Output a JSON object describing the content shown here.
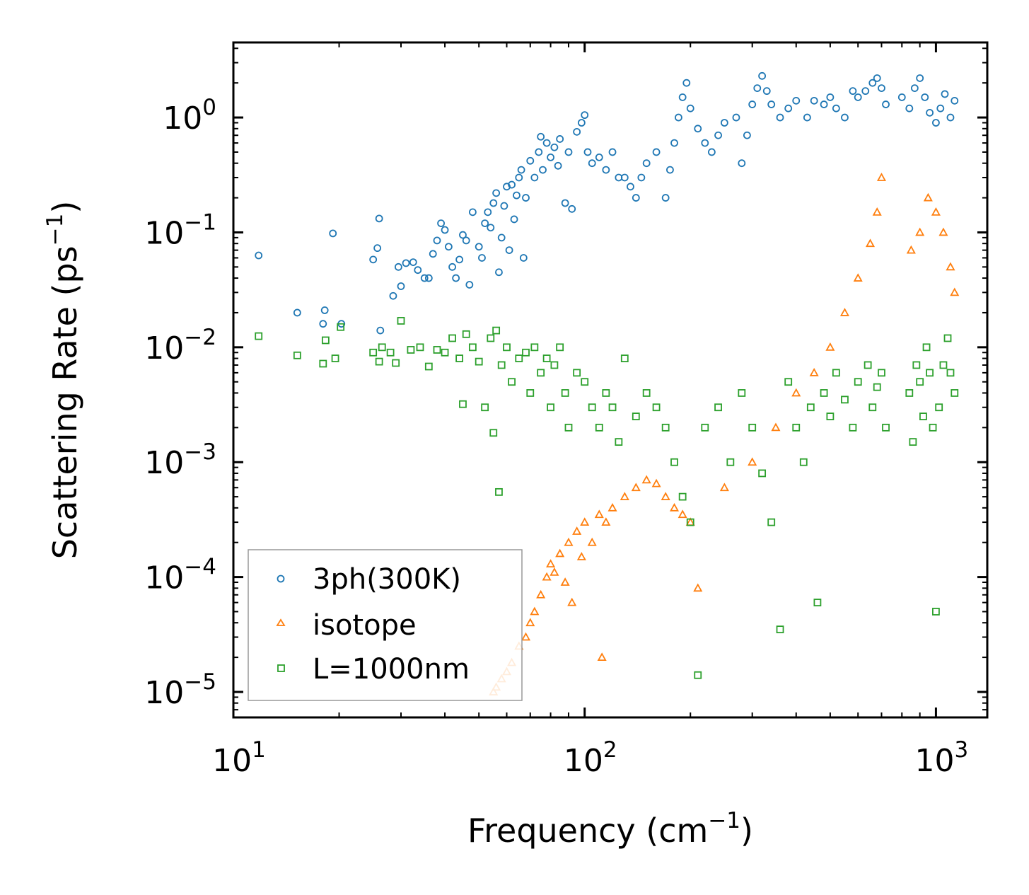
{
  "chart_data": {
    "type": "scatter",
    "title": "",
    "xlabel": "Frequency (cm",
    "xlabel_sup": "−1",
    "xlabel_suffix": ")",
    "ylabel": "Scattering Rate (ps",
    "ylabel_sup": "−1",
    "ylabel_suffix": ")",
    "xscale": "log",
    "yscale": "log",
    "xlim": [
      10,
      1400
    ],
    "ylim": [
      6e-06,
      4.5
    ],
    "x_ticks": [
      {
        "value": 10,
        "base": "10",
        "exp": "1"
      },
      {
        "value": 100,
        "base": "10",
        "exp": "2"
      },
      {
        "value": 1000,
        "base": "10",
        "exp": "3"
      }
    ],
    "y_ticks": [
      {
        "value": 1,
        "base": "10",
        "exp": "0"
      },
      {
        "value": 0.1,
        "base": "10",
        "exp": "−1"
      },
      {
        "value": 0.01,
        "base": "10",
        "exp": "−2"
      },
      {
        "value": 0.001,
        "base": "10",
        "exp": "−3"
      },
      {
        "value": 0.0001,
        "base": "10",
        "exp": "−4"
      },
      {
        "value": 1e-05,
        "base": "10",
        "exp": "−5"
      }
    ],
    "legend": {
      "position": "lower-left"
    },
    "series": [
      {
        "name": "3ph(300K)",
        "marker": "circle",
        "color": "#1f77b4",
        "points": [
          [
            11.8,
            0.063
          ],
          [
            15.2,
            0.02
          ],
          [
            18,
            0.016
          ],
          [
            18.2,
            0.021
          ],
          [
            19.2,
            0.098
          ],
          [
            20.3,
            0.016
          ],
          [
            25,
            0.058
          ],
          [
            25.7,
            0.073
          ],
          [
            26,
            0.132
          ],
          [
            26.2,
            0.014
          ],
          [
            28.5,
            0.028
          ],
          [
            29.5,
            0.05
          ],
          [
            30,
            0.034
          ],
          [
            31,
            0.054
          ],
          [
            32.5,
            0.055
          ],
          [
            33.5,
            0.047
          ],
          [
            35,
            0.04
          ],
          [
            36,
            0.04
          ],
          [
            37,
            0.065
          ],
          [
            38,
            0.085
          ],
          [
            39,
            0.12
          ],
          [
            40,
            0.105
          ],
          [
            41,
            0.075
          ],
          [
            42,
            0.05
          ],
          [
            43,
            0.04
          ],
          [
            44,
            0.058
          ],
          [
            45,
            0.095
          ],
          [
            46,
            0.085
          ],
          [
            47,
            0.035
          ],
          [
            48,
            0.15
          ],
          [
            50,
            0.075
          ],
          [
            51,
            0.06
          ],
          [
            52,
            0.12
          ],
          [
            53,
            0.15
          ],
          [
            54,
            0.11
          ],
          [
            55,
            0.18
          ],
          [
            56,
            0.22
          ],
          [
            57,
            0.045
          ],
          [
            58,
            0.09
          ],
          [
            59,
            0.17
          ],
          [
            60,
            0.25
          ],
          [
            61,
            0.07
          ],
          [
            62,
            0.26
          ],
          [
            63,
            0.13
          ],
          [
            64,
            0.21
          ],
          [
            65,
            0.3
          ],
          [
            66,
            0.35
          ],
          [
            67,
            0.06
          ],
          [
            68,
            0.2
          ],
          [
            70,
            0.42
          ],
          [
            72,
            0.3
          ],
          [
            74,
            0.5
          ],
          [
            75,
            0.68
          ],
          [
            76,
            0.35
          ],
          [
            78,
            0.6
          ],
          [
            80,
            0.45
          ],
          [
            82,
            0.55
          ],
          [
            84,
            0.38
          ],
          [
            85,
            0.65
          ],
          [
            88,
            0.18
          ],
          [
            90,
            0.5
          ],
          [
            92,
            0.16
          ],
          [
            95,
            0.75
          ],
          [
            98,
            0.9
          ],
          [
            100,
            1.05
          ],
          [
            102,
            0.5
          ],
          [
            105,
            0.4
          ],
          [
            110,
            0.45
          ],
          [
            115,
            0.35
          ],
          [
            120,
            0.5
          ],
          [
            125,
            0.3
          ],
          [
            130,
            0.3
          ],
          [
            135,
            0.25
          ],
          [
            140,
            0.2
          ],
          [
            145,
            0.3
          ],
          [
            150,
            0.4
          ],
          [
            160,
            0.5
          ],
          [
            170,
            0.2
          ],
          [
            175,
            0.35
          ],
          [
            180,
            0.6
          ],
          [
            185,
            1.0
          ],
          [
            190,
            1.5
          ],
          [
            195,
            2.0
          ],
          [
            200,
            1.2
          ],
          [
            210,
            0.8
          ],
          [
            220,
            0.6
          ],
          [
            230,
            0.5
          ],
          [
            240,
            0.7
          ],
          [
            250,
            0.9
          ],
          [
            270,
            1.0
          ],
          [
            280,
            0.4
          ],
          [
            290,
            0.7
          ],
          [
            300,
            1.3
          ],
          [
            310,
            1.8
          ],
          [
            320,
            2.3
          ],
          [
            330,
            1.7
          ],
          [
            340,
            1.3
          ],
          [
            360,
            1.0
          ],
          [
            380,
            1.2
          ],
          [
            400,
            1.4
          ],
          [
            430,
            1.0
          ],
          [
            450,
            1.4
          ],
          [
            480,
            1.3
          ],
          [
            500,
            1.5
          ],
          [
            520,
            1.2
          ],
          [
            550,
            1.0
          ],
          [
            580,
            1.7
          ],
          [
            600,
            1.5
          ],
          [
            630,
            1.7
          ],
          [
            660,
            2.0
          ],
          [
            680,
            2.2
          ],
          [
            700,
            1.8
          ],
          [
            720,
            1.3
          ],
          [
            800,
            1.5
          ],
          [
            840,
            1.2
          ],
          [
            870,
            1.8
          ],
          [
            900,
            2.2
          ],
          [
            930,
            1.5
          ],
          [
            960,
            1.1
          ],
          [
            1000,
            0.9
          ],
          [
            1030,
            1.2
          ],
          [
            1060,
            1.6
          ],
          [
            1100,
            1.0
          ],
          [
            1130,
            1.4
          ]
        ]
      },
      {
        "name": "isotope",
        "marker": "triangle",
        "color": "#ff7f0e",
        "points": [
          [
            55,
            1e-05
          ],
          [
            56,
            1.1e-05
          ],
          [
            58,
            1.3e-05
          ],
          [
            60,
            1.5e-05
          ],
          [
            62,
            1.8e-05
          ],
          [
            65,
            2.5e-05
          ],
          [
            68,
            3e-05
          ],
          [
            70,
            4e-05
          ],
          [
            72,
            5e-05
          ],
          [
            75,
            7e-05
          ],
          [
            78,
            0.0001
          ],
          [
            80,
            0.00013
          ],
          [
            82,
            0.00011
          ],
          [
            85,
            0.00016
          ],
          [
            88,
            9e-05
          ],
          [
            90,
            0.0002
          ],
          [
            92,
            6e-05
          ],
          [
            95,
            0.00025
          ],
          [
            98,
            0.00015
          ],
          [
            100,
            0.0003
          ],
          [
            105,
            0.0002
          ],
          [
            110,
            0.00035
          ],
          [
            112,
            2e-05
          ],
          [
            115,
            0.0003
          ],
          [
            120,
            0.0004
          ],
          [
            130,
            0.0005
          ],
          [
            140,
            0.0006
          ],
          [
            150,
            0.0007
          ],
          [
            160,
            0.00065
          ],
          [
            170,
            0.0005
          ],
          [
            180,
            0.0004
          ],
          [
            190,
            0.00035
          ],
          [
            200,
            0.0003
          ],
          [
            210,
            8e-05
          ],
          [
            250,
            0.0006
          ],
          [
            300,
            0.001
          ],
          [
            350,
            0.002
          ],
          [
            400,
            0.004
          ],
          [
            450,
            0.006
          ],
          [
            500,
            0.01
          ],
          [
            550,
            0.02
          ],
          [
            600,
            0.04
          ],
          [
            650,
            0.08
          ],
          [
            680,
            0.15
          ],
          [
            700,
            0.3
          ],
          [
            850,
            0.07
          ],
          [
            900,
            0.1
          ],
          [
            950,
            0.2
          ],
          [
            1000,
            0.15
          ],
          [
            1050,
            0.1
          ],
          [
            1100,
            0.05
          ],
          [
            1130,
            0.03
          ]
        ]
      },
      {
        "name": "L=1000nm",
        "marker": "square",
        "color": "#2ca02c",
        "points": [
          [
            11.8,
            0.0125
          ],
          [
            15.2,
            0.0085
          ],
          [
            18,
            0.0072
          ],
          [
            18.3,
            0.0115
          ],
          [
            19.5,
            0.008
          ],
          [
            20.2,
            0.015
          ],
          [
            25,
            0.009
          ],
          [
            26,
            0.0075
          ],
          [
            26.5,
            0.01
          ],
          [
            28,
            0.009
          ],
          [
            29,
            0.0073
          ],
          [
            30,
            0.017
          ],
          [
            32,
            0.0095
          ],
          [
            34,
            0.01
          ],
          [
            36,
            0.0068
          ],
          [
            38,
            0.0095
          ],
          [
            40,
            0.009
          ],
          [
            42,
            0.012
          ],
          [
            44,
            0.008
          ],
          [
            45,
            0.0032
          ],
          [
            46,
            0.013
          ],
          [
            48,
            0.01
          ],
          [
            50,
            0.0075
          ],
          [
            52,
            0.003
          ],
          [
            54,
            0.012
          ],
          [
            55,
            0.0018
          ],
          [
            56,
            0.014
          ],
          [
            57,
            0.00055
          ],
          [
            58,
            0.007
          ],
          [
            60,
            0.01
          ],
          [
            62,
            0.005
          ],
          [
            65,
            0.008
          ],
          [
            68,
            0.009
          ],
          [
            70,
            0.004
          ],
          [
            72,
            0.01
          ],
          [
            75,
            0.006
          ],
          [
            78,
            0.008
          ],
          [
            80,
            0.003
          ],
          [
            82,
            0.007
          ],
          [
            85,
            0.01
          ],
          [
            88,
            0.004
          ],
          [
            90,
            0.002
          ],
          [
            95,
            0.006
          ],
          [
            100,
            0.005
          ],
          [
            105,
            0.003
          ],
          [
            110,
            0.002
          ],
          [
            115,
            0.004
          ],
          [
            120,
            0.003
          ],
          [
            125,
            0.0015
          ],
          [
            130,
            0.008
          ],
          [
            140,
            0.0025
          ],
          [
            150,
            0.004
          ],
          [
            160,
            0.003
          ],
          [
            170,
            0.002
          ],
          [
            180,
            0.001
          ],
          [
            190,
            0.0005
          ],
          [
            200,
            0.0003
          ],
          [
            210,
            1.4e-05
          ],
          [
            220,
            0.002
          ],
          [
            240,
            0.003
          ],
          [
            260,
            0.001
          ],
          [
            280,
            0.004
          ],
          [
            300,
            0.002
          ],
          [
            320,
            0.0008
          ],
          [
            340,
            0.0003
          ],
          [
            360,
            3.5e-05
          ],
          [
            380,
            0.005
          ],
          [
            400,
            0.002
          ],
          [
            420,
            0.001
          ],
          [
            440,
            0.003
          ],
          [
            460,
            6e-05
          ],
          [
            480,
            0.004
          ],
          [
            500,
            0.0025
          ],
          [
            520,
            0.006
          ],
          [
            550,
            0.0035
          ],
          [
            580,
            0.002
          ],
          [
            600,
            0.005
          ],
          [
            640,
            0.007
          ],
          [
            660,
            0.003
          ],
          [
            680,
            0.0045
          ],
          [
            700,
            0.006
          ],
          [
            720,
            0.002
          ],
          [
            840,
            0.004
          ],
          [
            860,
            0.0015
          ],
          [
            880,
            0.007
          ],
          [
            900,
            0.005
          ],
          [
            920,
            0.0025
          ],
          [
            940,
            0.01
          ],
          [
            960,
            0.006
          ],
          [
            980,
            0.002
          ],
          [
            1000,
            5e-05
          ],
          [
            1020,
            0.003
          ],
          [
            1050,
            0.007
          ],
          [
            1080,
            0.012
          ],
          [
            1100,
            0.006
          ],
          [
            1130,
            0.004
          ]
        ]
      }
    ]
  }
}
